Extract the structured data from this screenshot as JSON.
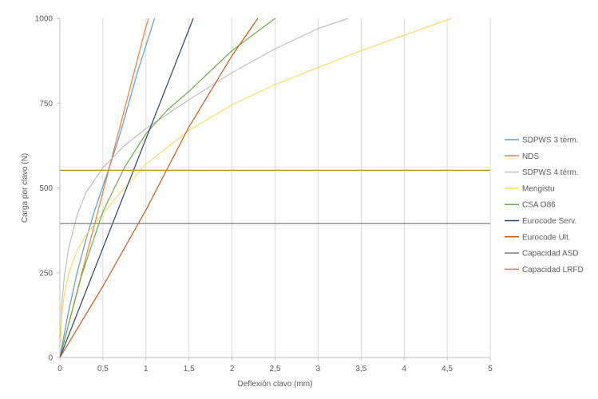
{
  "chart_data": {
    "type": "line",
    "xlabel": "Deflexión clavo (mm)",
    "ylabel": "Carga por clavo (N)",
    "xlim": [
      0,
      5
    ],
    "ylim": [
      0,
      1000
    ],
    "x_ticks": [
      "0",
      "0,5",
      "1",
      "1,5",
      "2",
      "2,5",
      "3",
      "3,5",
      "4",
      "4,5",
      "5"
    ],
    "y_ticks": [
      "0",
      "250",
      "500",
      "750",
      "1000"
    ],
    "grid": "vertical",
    "legend_position": "right",
    "series": [
      {
        "name": "SDPWS 3 térm.",
        "color": "#5B9BD5",
        "points": [
          [
            0,
            0
          ],
          [
            0.1,
            135
          ],
          [
            0.2,
            250
          ],
          [
            0.3,
            345
          ],
          [
            0.4,
            430
          ],
          [
            0.5,
            505
          ],
          [
            0.6,
            580
          ],
          [
            0.7,
            660
          ],
          [
            0.8,
            750
          ],
          [
            0.9,
            840
          ],
          [
            1.0,
            920
          ],
          [
            1.1,
            1000
          ]
        ]
      },
      {
        "name": "NDS",
        "color": "#ED7D31",
        "points": [
          [
            0,
            0
          ],
          [
            1.0,
            975
          ],
          [
            1.03,
            1000
          ]
        ]
      },
      {
        "name": "SDPWS 4 térm.",
        "color": "#BFBFBF",
        "points": [
          [
            0,
            0
          ],
          [
            0.02,
            150
          ],
          [
            0.05,
            235
          ],
          [
            0.1,
            320
          ],
          [
            0.2,
            420
          ],
          [
            0.3,
            485
          ],
          [
            0.5,
            560
          ],
          [
            0.75,
            625
          ],
          [
            1.0,
            675
          ],
          [
            1.5,
            760
          ],
          [
            2.0,
            840
          ],
          [
            2.5,
            910
          ],
          [
            3.0,
            970
          ],
          [
            3.35,
            1000
          ]
        ]
      },
      {
        "name": "Mengistu",
        "color": "#FFD966",
        "points": [
          [
            0,
            0
          ],
          [
            0.02,
            120
          ],
          [
            0.05,
            185
          ],
          [
            0.1,
            245
          ],
          [
            0.2,
            315
          ],
          [
            0.3,
            360
          ],
          [
            0.5,
            425
          ],
          [
            0.75,
            500
          ],
          [
            1.0,
            570
          ],
          [
            1.5,
            670
          ],
          [
            2.0,
            745
          ],
          [
            2.5,
            805
          ],
          [
            3.0,
            855
          ],
          [
            3.5,
            905
          ],
          [
            4.0,
            950
          ],
          [
            4.55,
            1000
          ]
        ]
      },
      {
        "name": "CSA O86",
        "color": "#70AD47",
        "points": [
          [
            0,
            0
          ],
          [
            0.25,
            240
          ],
          [
            0.5,
            430
          ],
          [
            0.75,
            560
          ],
          [
            1.0,
            660
          ],
          [
            1.25,
            730
          ],
          [
            1.5,
            785
          ],
          [
            2.0,
            905
          ],
          [
            2.5,
            1000
          ]
        ]
      },
      {
        "name": "Eurocode Serv.",
        "color": "#264478",
        "points": [
          [
            0,
            0
          ],
          [
            1.55,
            1000
          ]
        ]
      },
      {
        "name": "Eurocode Ult.",
        "color": "#C55A11",
        "points": [
          [
            0,
            0
          ],
          [
            0.5,
            210
          ],
          [
            1.0,
            435
          ],
          [
            1.5,
            680
          ],
          [
            2.0,
            890
          ],
          [
            2.3,
            1000
          ]
        ]
      },
      {
        "name": "Capacidad ASD",
        "color": "#7F7F7F",
        "points": [
          [
            0,
            395
          ],
          [
            5,
            395
          ]
        ]
      },
      {
        "name": "Capacidad LRFD",
        "color": "#BF9000",
        "points": [
          [
            0,
            552
          ],
          [
            5,
            552
          ]
        ]
      }
    ]
  }
}
